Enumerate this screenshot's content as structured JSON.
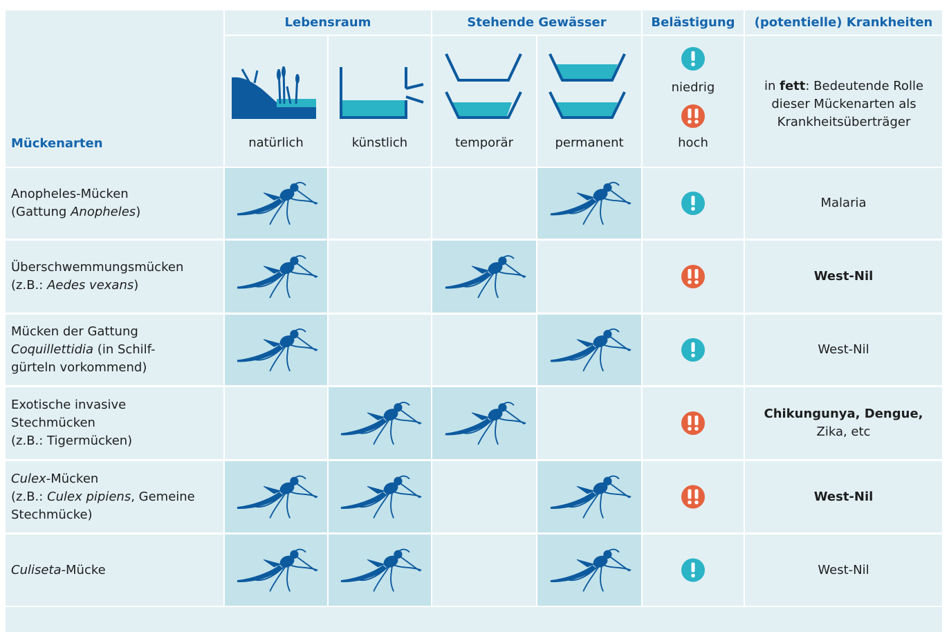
{
  "header": {
    "species_label": "Mückenarten",
    "groups": [
      "Lebensraum",
      "Stehende Gewässer",
      "Belästigung",
      "(potentielle) Krankheiten"
    ],
    "columns": [
      "natürlich",
      "künstlich",
      "temporär",
      "permanent"
    ],
    "annoyance_levels": [
      "niedrig",
      "hoch"
    ],
    "disease_note": [
      {
        "text": "in "
      },
      {
        "text": "fett",
        "style": "bold"
      },
      {
        "text": ": Bedeutende Rolle dieser Mückenarten als Krankheitsüberträger"
      }
    ]
  },
  "rows": [
    {
      "name": [
        [
          {
            "text": "Anopheles-Mücken"
          }
        ],
        [
          {
            "text": "(Gattung "
          },
          {
            "text": "Anopheles",
            "style": "italic"
          },
          {
            "text": ")"
          }
        ]
      ],
      "habitats": [
        true,
        false,
        false,
        true
      ],
      "high": false,
      "diseases": [
        [
          {
            "text": "Malaria"
          }
        ]
      ]
    },
    {
      "name": [
        [
          {
            "text": "Überschwemmungsmücken"
          }
        ],
        [
          {
            "text": "(z.B.: "
          },
          {
            "text": "Aedes vexans",
            "style": "italic"
          },
          {
            "text": ")"
          }
        ]
      ],
      "habitats": [
        true,
        false,
        true,
        false
      ],
      "high": true,
      "diseases": [
        [
          {
            "text": "West-Nil",
            "style": "bold"
          }
        ]
      ]
    },
    {
      "name": [
        [
          {
            "text": "Mücken der Gattung"
          }
        ],
        [
          {
            "text": "Coquillettidia",
            "style": "italic"
          },
          {
            "text": " (in Schilf-"
          }
        ],
        [
          {
            "text": "gürteln vorkommend)"
          }
        ]
      ],
      "habitats": [
        true,
        false,
        false,
        true
      ],
      "high": false,
      "diseases": [
        [
          {
            "text": "West-Nil"
          }
        ]
      ]
    },
    {
      "name": [
        [
          {
            "text": "Exotische invasive"
          }
        ],
        [
          {
            "text": "Stechmücken"
          }
        ],
        [
          {
            "text": "(z.B.: Tigermücken)"
          }
        ]
      ],
      "habitats": [
        false,
        true,
        true,
        false
      ],
      "high": true,
      "diseases": [
        [
          {
            "text": "Chikungunya, Dengue,",
            "style": "bold"
          }
        ],
        [
          {
            "text": "Zika, etc"
          }
        ]
      ]
    },
    {
      "name": [
        [
          {
            "text": "Culex",
            "style": "italic"
          },
          {
            "text": "-Mücken"
          }
        ],
        [
          {
            "text": "(z.B.: "
          },
          {
            "text": "Culex pipiens",
            "style": "italic"
          },
          {
            "text": ", Gemeine"
          }
        ],
        [
          {
            "text": "Stechmücke)"
          }
        ]
      ],
      "habitats": [
        true,
        true,
        false,
        true
      ],
      "high": true,
      "diseases": [
        [
          {
            "text": "West-Nil",
            "style": "bold"
          }
        ]
      ]
    },
    {
      "name": [
        [
          {
            "text": "Culiseta",
            "style": "italic"
          },
          {
            "text": "-Mücke"
          }
        ]
      ],
      "habitats": [
        true,
        true,
        false,
        true
      ],
      "high": false,
      "diseases": [
        [
          {
            "text": "West-Nil"
          }
        ]
      ]
    }
  ]
}
